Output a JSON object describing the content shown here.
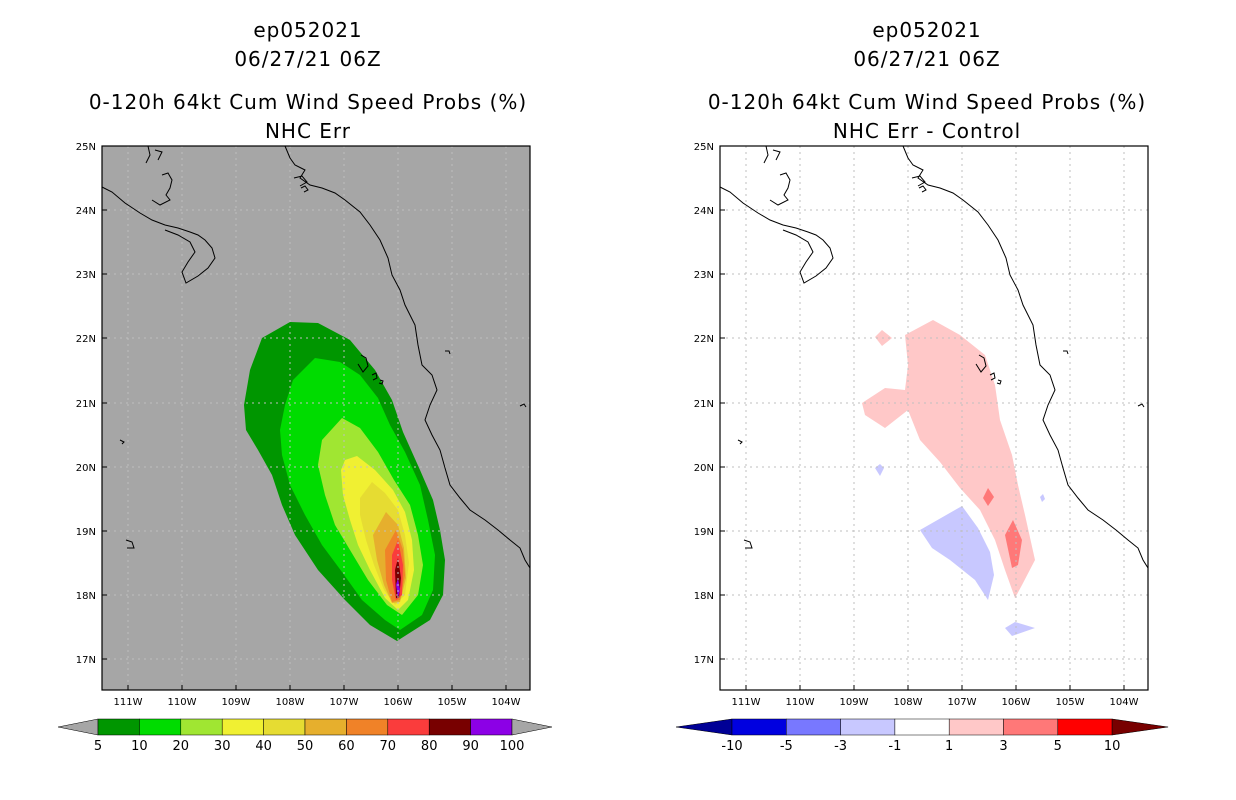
{
  "colors": {
    "ocean_left": "#a6a6a6",
    "ocean_right": "#ffffff",
    "coast": "#000000",
    "grid": "#bfbfbf",
    "left_levels": [
      "#009600",
      "#00dc00",
      "#a0e632",
      "#f0f032",
      "#e6dc32",
      "#e6af2d",
      "#f08228",
      "#fa3c3c",
      "#780000",
      "#8c00e6"
    ],
    "left_under": "#a6a6a6",
    "left_over": "#a6a6a6",
    "right_levels": [
      "#0000e0",
      "#7878ff",
      "#c8c8ff",
      "#ffffff",
      "#ffc8c8",
      "#ff7878",
      "#ff0000"
    ],
    "right_under": "#000096",
    "right_over": "#780000"
  },
  "left_panel": {
    "title_line1": "ep052021",
    "title_line2": "06/27/21 06Z",
    "title_line3": "0-120h 64kt Cum Wind Speed Probs (%)",
    "title_line4": "NHC Err",
    "colorbar_labels": [
      "5",
      "10",
      "20",
      "30",
      "40",
      "50",
      "60",
      "70",
      "80",
      "90",
      "100"
    ]
  },
  "right_panel": {
    "title_line1": "ep052021",
    "title_line2": "06/27/21 06Z",
    "title_line3": "0-120h 64kt Cum Wind Speed Probs (%)",
    "title_line4": "NHC Err - Control",
    "colorbar_labels": [
      "-10",
      "-5",
      "-3",
      "-1",
      "1",
      "3",
      "5",
      "10"
    ]
  },
  "axes": {
    "lon_labels": [
      "111W",
      "110W",
      "109W",
      "108W",
      "107W",
      "106W",
      "105W",
      "104W"
    ],
    "lat_labels": [
      "25N",
      "24N",
      "23N",
      "22N",
      "21N",
      "20N",
      "19N",
      "18N",
      "17N"
    ]
  }
}
